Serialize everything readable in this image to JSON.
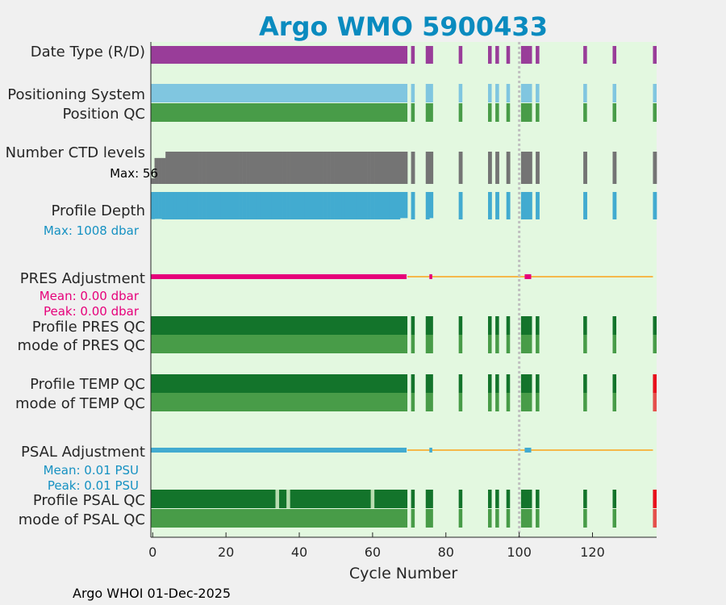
{
  "chart_data": {
    "type": "bar",
    "title": "Argo WMO 5900433",
    "title_color": "#0a8bbf",
    "xlabel": "Cycle Number",
    "xlim": [
      -0.5,
      137.5
    ],
    "xticks": [
      0,
      20,
      40,
      60,
      80,
      100,
      120
    ],
    "vline_cycle": 100,
    "footer": "Argo WHOI 01-Dec-2025",
    "background_color": "#e3f8e0",
    "cycles_present": {
      "ranges": [
        [
          0,
          69
        ],
        [
          71,
          71
        ],
        [
          75,
          76
        ],
        [
          84,
          84
        ],
        [
          92,
          92
        ],
        [
          94,
          94
        ],
        [
          97,
          97
        ],
        [
          101,
          103
        ],
        [
          105,
          105
        ],
        [
          118,
          118
        ],
        [
          126,
          126
        ],
        [
          137,
          137
        ]
      ]
    },
    "rows": [
      {
        "key": "date_type",
        "label": "Date Type (R/D)",
        "color": "#993d99"
      },
      {
        "key": "positioning_system",
        "label": "Positioning System",
        "color": "#80c6e0"
      },
      {
        "key": "position_qc",
        "label": "Position QC",
        "color": "#489c48"
      },
      {
        "key": "n_levels",
        "label": "Number CTD levels",
        "color": "#747474",
        "note": "Max: 56",
        "max_value": 56
      },
      {
        "key": "profile_depth",
        "label": "Profile Depth",
        "color": "#42abd0",
        "note": "Max: 1008 dbar",
        "note_color": "#1591c2",
        "max_value": 1008
      },
      {
        "key": "pres_adjustment",
        "label": "PRES Adjustment",
        "color": "#e6007a",
        "baseline_color": "#f5b84a",
        "notes": [
          "Mean: 0.00 dbar",
          "Peak: 0.00 dbar"
        ],
        "notes_color": "#e6007a"
      },
      {
        "key": "profile_pres_qc",
        "label": "Profile PRES QC",
        "color": "#13742b"
      },
      {
        "key": "mode_pres_qc",
        "label": "mode of PRES QC",
        "color": "#489c48"
      },
      {
        "key": "profile_temp_qc",
        "label": "Profile TEMP QC",
        "color": "#13742b",
        "bad_color": "#e8101c",
        "bad_cycles": [
          137
        ]
      },
      {
        "key": "mode_temp_qc",
        "label": "mode of TEMP QC",
        "color": "#489c48",
        "bad_color": "#e5504c",
        "bad_cycles": [
          137
        ]
      },
      {
        "key": "psal_adjustment",
        "label": "PSAL Adjustment",
        "color": "#42abd0",
        "baseline_color": "#f5b84a",
        "notes": [
          "Mean: 0.01 PSU",
          "Peak: 0.01 PSU"
        ],
        "notes_color": "#1591c2"
      },
      {
        "key": "profile_psal_qc",
        "label": "Profile PSAL QC",
        "color": "#13742b",
        "bad_color": "#e8101c",
        "bad_cycles": [
          137
        ],
        "light_cycles": [
          34,
          37,
          60
        ]
      },
      {
        "key": "mode_psal_qc",
        "label": "mode of PSAL QC",
        "color": "#489c48",
        "bad_color": "#e5504c",
        "bad_cycles": [
          137
        ]
      }
    ],
    "n_levels_values": {
      "0": 10,
      "1": 45,
      "2": 45,
      "3": 45,
      "default": 56
    },
    "profile_depth_values": {
      "0": 1000,
      "1": 990,
      "2": 990,
      "68": 960,
      "69": 960,
      "76": 960,
      "default": 1008
    }
  }
}
